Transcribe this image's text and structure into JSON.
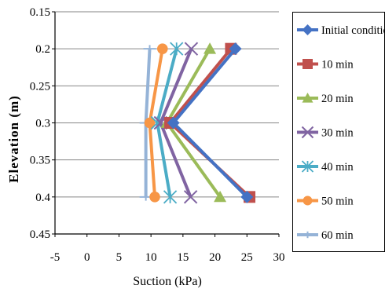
{
  "chart_data": {
    "type": "line",
    "title": "",
    "xlabel": "Suction (kPa)",
    "ylabel": "Elevation (m)",
    "xlim": [
      -5,
      30
    ],
    "ylim": [
      0.15,
      0.45
    ],
    "y_inverted": true,
    "xticks": [
      "-5",
      "0",
      "5",
      "10",
      "15",
      "20",
      "25",
      "30"
    ],
    "xtick_values": [
      -5,
      0,
      5,
      10,
      15,
      20,
      25,
      30
    ],
    "yticks": [
      "0.15",
      "0.2",
      "0.25",
      "0.3",
      "0.35",
      "0.4",
      "0.45"
    ],
    "ytick_values": [
      0.15,
      0.2,
      0.25,
      0.3,
      0.35,
      0.4,
      0.45
    ],
    "grid": "horizontal",
    "legend_position": "right",
    "series": [
      {
        "name": "Initial condition",
        "marker": "diamond",
        "color": "#4472C4",
        "points": [
          {
            "x": 23.2,
            "y": 0.2
          },
          {
            "x": 13.5,
            "y": 0.3
          },
          {
            "x": 25.0,
            "y": 0.4
          }
        ]
      },
      {
        "name": "10 min",
        "marker": "square",
        "color": "#C0504D",
        "points": [
          {
            "x": 22.5,
            "y": 0.2
          },
          {
            "x": 13.0,
            "y": 0.3
          },
          {
            "x": 25.4,
            "y": 0.4
          }
        ]
      },
      {
        "name": "20 min",
        "marker": "triangle",
        "color": "#9BBB59",
        "points": [
          {
            "x": 19.2,
            "y": 0.2
          },
          {
            "x": 12.5,
            "y": 0.3
          },
          {
            "x": 20.8,
            "y": 0.4
          }
        ]
      },
      {
        "name": "30 min",
        "marker": "x",
        "color": "#8064A2",
        "points": [
          {
            "x": 16.3,
            "y": 0.2
          },
          {
            "x": 11.5,
            "y": 0.3
          },
          {
            "x": 16.2,
            "y": 0.4
          }
        ]
      },
      {
        "name": "40 min",
        "marker": "asterisk",
        "color": "#4BACC6",
        "points": [
          {
            "x": 14.0,
            "y": 0.2
          },
          {
            "x": 11.0,
            "y": 0.3
          },
          {
            "x": 13.0,
            "y": 0.4
          }
        ]
      },
      {
        "name": "50 min",
        "marker": "circle",
        "color": "#F79646",
        "points": [
          {
            "x": 11.8,
            "y": 0.2
          },
          {
            "x": 9.8,
            "y": 0.3
          },
          {
            "x": 10.6,
            "y": 0.4
          }
        ]
      },
      {
        "name": "60 min",
        "marker": "plus",
        "color": "#95B3D7",
        "points": [
          {
            "x": 9.8,
            "y": 0.2
          },
          {
            "x": 9.2,
            "y": 0.3
          },
          {
            "x": 9.2,
            "y": 0.4
          }
        ]
      }
    ]
  }
}
